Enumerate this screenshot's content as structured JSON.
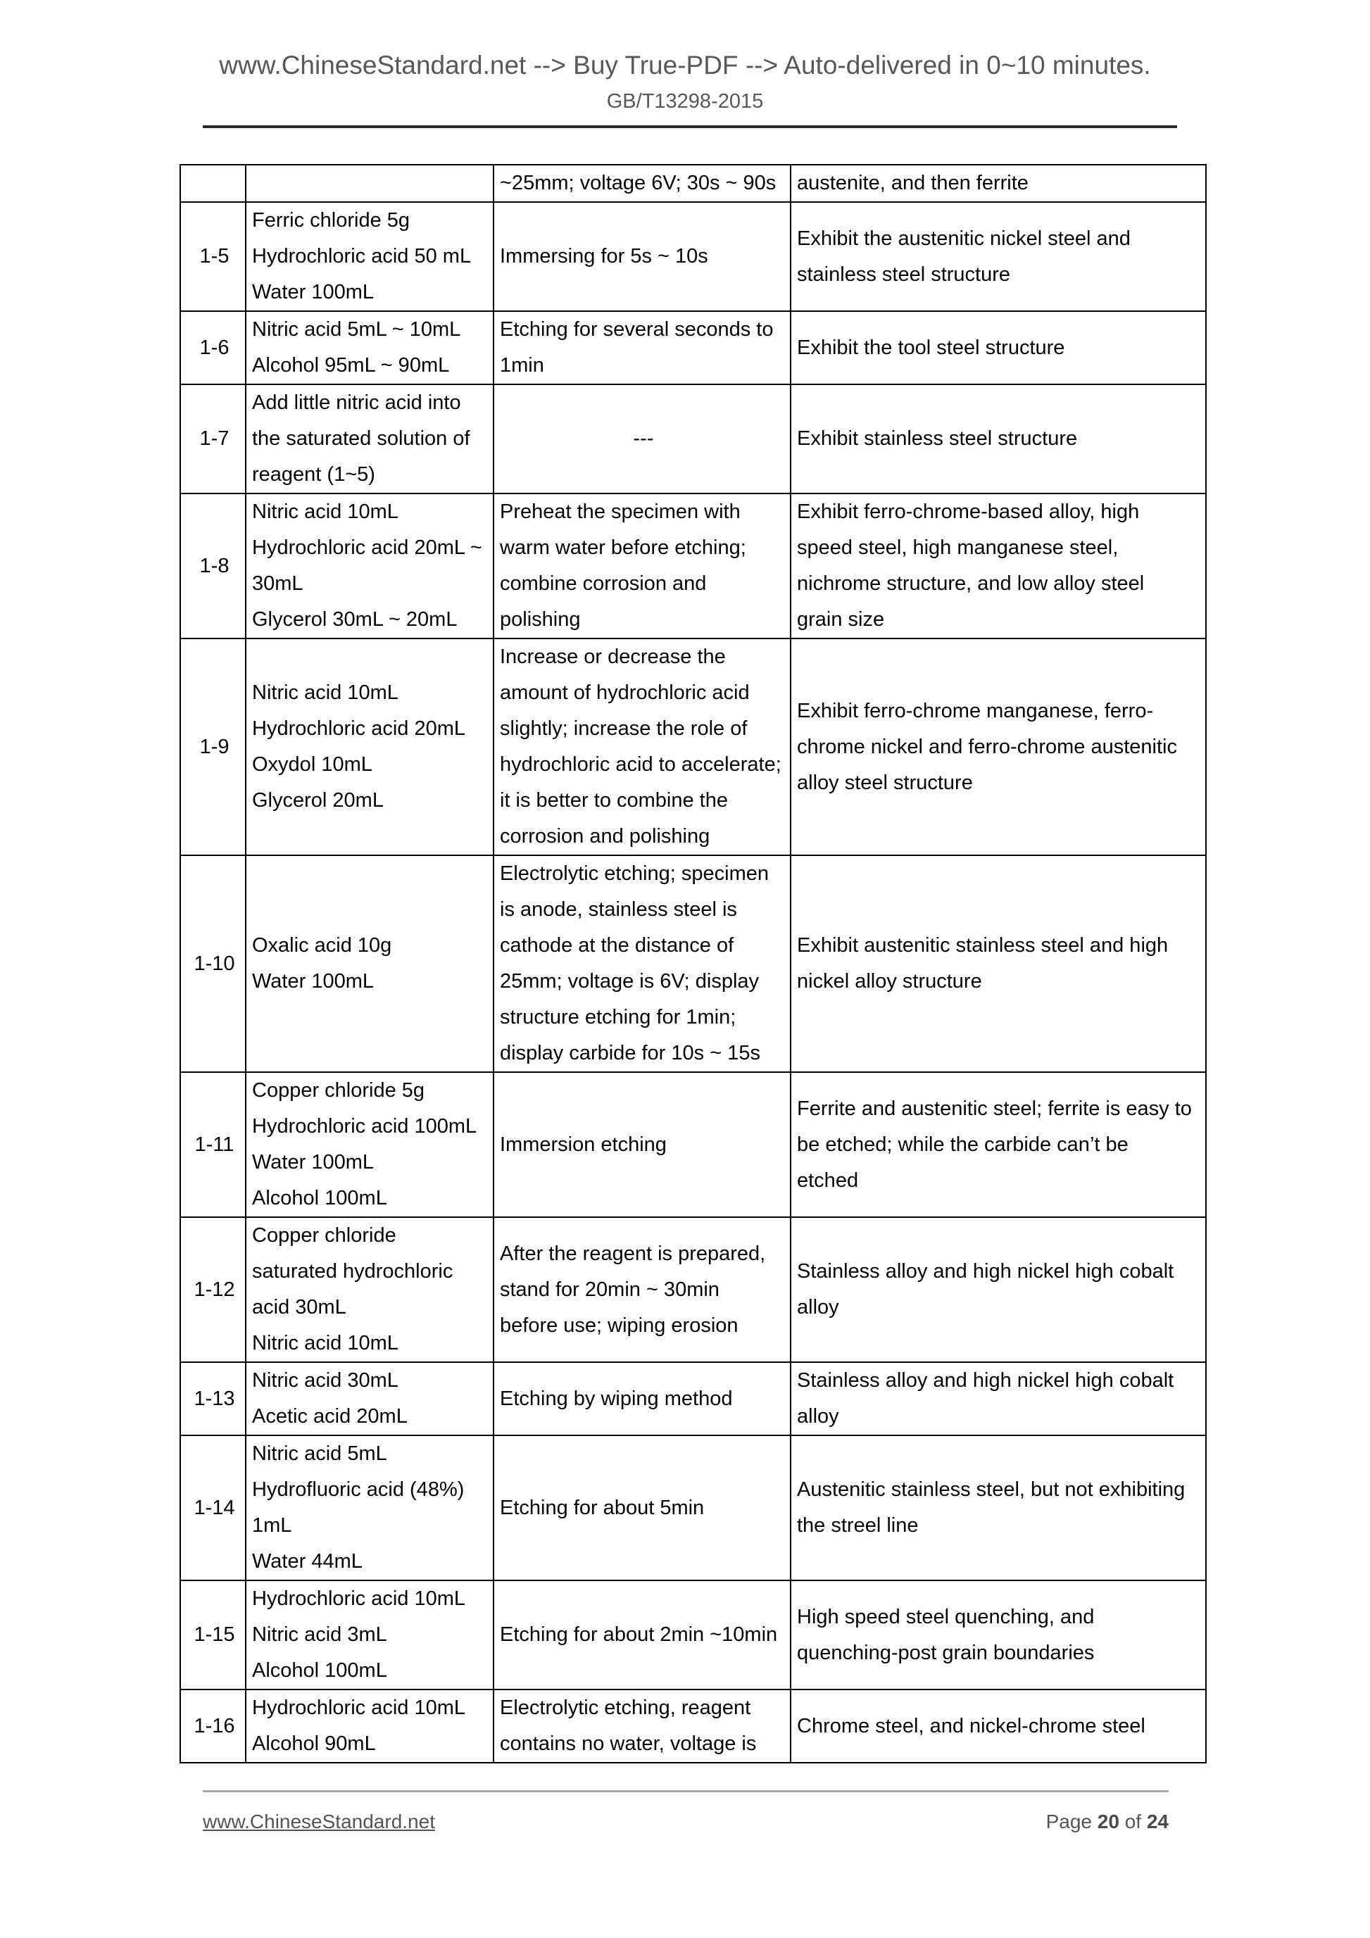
{
  "header": {
    "banner": "www.ChineseStandard.net --> Buy True-PDF --> Auto-delivered in 0~10 minutes.",
    "doc_code": "GB/T13298-2015"
  },
  "table": {
    "rows": [
      {
        "id": "",
        "reagent": [],
        "method": [
          "~25mm; voltage 6V; 30s ~ 90s"
        ],
        "purpose": [
          "austenite, and then ferrite"
        ]
      },
      {
        "id": "1-5",
        "reagent": [
          "Ferric chloride 5g",
          "Hydrochloric acid 50 mL",
          "Water 100mL"
        ],
        "method": [
          "Immersing for 5s ~ 10s"
        ],
        "purpose": [
          "Exhibit the austenitic nickel steel and",
          "stainless steel structure"
        ]
      },
      {
        "id": "1-6",
        "reagent": [
          "Nitric acid 5mL ~ 10mL",
          "Alcohol 95mL ~ 90mL"
        ],
        "method": [
          "Etching for several seconds to",
          "1min"
        ],
        "purpose": [
          "Exhibit the tool steel structure"
        ]
      },
      {
        "id": "1-7",
        "reagent": [
          "Add little nitric acid into",
          "the saturated solution of",
          "reagent (1~5)"
        ],
        "method": [
          "---"
        ],
        "purpose": [
          "Exhibit stainless steel structure"
        ]
      },
      {
        "id": "1-8",
        "reagent": [
          "Nitric acid 10mL",
          "Hydrochloric acid 20mL ~",
          "30mL",
          "Glycerol 30mL ~ 20mL"
        ],
        "method": [
          "Preheat the specimen with",
          "warm water before etching;",
          "combine corrosion and",
          "polishing"
        ],
        "purpose": [
          "Exhibit ferro-chrome-based alloy, high",
          "speed steel, high manganese steel,",
          "nichrome structure, and low alloy steel",
          "grain size"
        ]
      },
      {
        "id": "1-9",
        "reagent": [
          "Nitric acid 10mL",
          "Hydrochloric acid 20mL",
          "Oxydol 10mL",
          "Glycerol 20mL"
        ],
        "method": [
          "Increase or decrease the",
          "amount of hydrochloric acid",
          "slightly; increase the role of",
          "hydrochloric acid to accelerate;",
          "it is better to combine the",
          "corrosion and polishing"
        ],
        "purpose": [
          "Exhibit ferro-chrome manganese, ferro-",
          "chrome nickel and ferro-chrome austenitic",
          "alloy steel structure"
        ]
      },
      {
        "id": "1-10",
        "reagent": [
          "Oxalic acid 10g",
          "Water 100mL"
        ],
        "method": [
          "Electrolytic etching; specimen",
          "is anode, stainless steel is",
          "cathode at the distance of",
          "25mm; voltage is 6V; display",
          "structure etching for 1min;",
          "display carbide for 10s ~ 15s"
        ],
        "purpose": [
          "Exhibit austenitic stainless steel and high",
          "nickel alloy structure"
        ]
      },
      {
        "id": "1-11",
        "reagent": [
          "Copper chloride 5g",
          "Hydrochloric acid 100mL",
          "Water 100mL",
          "Alcohol 100mL"
        ],
        "method": [
          "Immersion etching"
        ],
        "purpose": [
          "Ferrite and austenitic steel; ferrite is easy to",
          "be etched; while the carbide can’t be",
          "etched"
        ]
      },
      {
        "id": "1-12",
        "reagent": [
          "Copper chloride",
          "saturated hydrochloric",
          "acid 30mL",
          "Nitric acid 10mL"
        ],
        "method": [
          "After the reagent is prepared,",
          "stand for 20min ~ 30min",
          "before use; wiping erosion"
        ],
        "purpose": [
          "Stainless alloy and high nickel high cobalt",
          "alloy"
        ]
      },
      {
        "id": "1-13",
        "reagent": [
          "Nitric acid 30mL",
          "Acetic acid 20mL"
        ],
        "method": [
          "Etching by wiping method"
        ],
        "purpose": [
          "Stainless alloy and high nickel high cobalt",
          "alloy"
        ]
      },
      {
        "id": "1-14",
        "reagent": [
          "Nitric acid 5mL",
          "Hydrofluoric acid (48%)",
          "1mL",
          "Water 44mL"
        ],
        "method": [
          "Etching for about 5min"
        ],
        "purpose": [
          "Austenitic stainless steel, but not exhibiting",
          "the streel line"
        ]
      },
      {
        "id": "1-15",
        "reagent": [
          "Hydrochloric acid 10mL",
          "Nitric acid 3mL",
          "Alcohol 100mL"
        ],
        "method": [
          "Etching for about 2min ~10min"
        ],
        "purpose": [
          "High speed steel quenching, and",
          "quenching-post grain boundaries"
        ]
      },
      {
        "id": "1-16",
        "reagent": [
          "Hydrochloric acid 10mL",
          "Alcohol 90mL"
        ],
        "method": [
          "Electrolytic etching, reagent",
          "contains no water, voltage is"
        ],
        "purpose": [
          "Chrome steel, and nickel-chrome steel"
        ]
      }
    ]
  },
  "footer": {
    "site": "www.ChineseStandard.net",
    "page_word": "Page",
    "page_number": "20",
    "of_word": "of",
    "page_total": "24"
  },
  "colors": {
    "header_text": "#58585a",
    "table_text": "#040404",
    "rule_dark": "#2b2b2b",
    "rule_light": "#a9a9a9"
  }
}
